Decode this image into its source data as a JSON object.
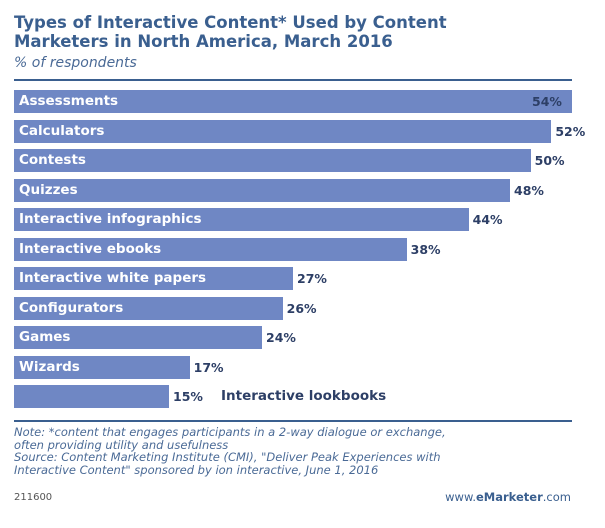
{
  "title_line1": "Types of Interactive Content* Used by Content",
  "title_line2": "Marketers in North America, March 2016",
  "subtitle": "% of respondents",
  "note_line1": "Note: *content that engages participants in a 2-way dialogue or exchange,",
  "note_line2": "often providing utility and usefulness",
  "source_line1": "Source: Content Marketing Institute (CMI), \"Deliver Peak Experiences with",
  "source_line2": "Interactive Content\" sponsored by ion interactive, June 1, 2016",
  "footer_id": "211600",
  "footer_brand_prefix": "www.",
  "footer_brand_name": "eMarketer",
  "footer_brand_suffix": ".com",
  "chart_data": {
    "type": "bar",
    "orientation": "horizontal",
    "unit": "%",
    "categories": [
      "Assessments",
      "Calculators",
      "Contests",
      "Quizzes",
      "Interactive infographics",
      "Interactive ebooks",
      "Interactive white papers",
      "Configurators",
      "Games",
      "Wizards",
      "Interactive lookbooks"
    ],
    "values": [
      54,
      52,
      50,
      48,
      44,
      38,
      27,
      26,
      24,
      17,
      15
    ],
    "value_labels": [
      "54%",
      "52%",
      "50%",
      "48%",
      "44%",
      "38%",
      "27%",
      "26%",
      "24%",
      "17%",
      "15%"
    ],
    "xlim": [
      0,
      54
    ],
    "bar_color": "#6f87c4",
    "grid": false,
    "legend": "none"
  }
}
